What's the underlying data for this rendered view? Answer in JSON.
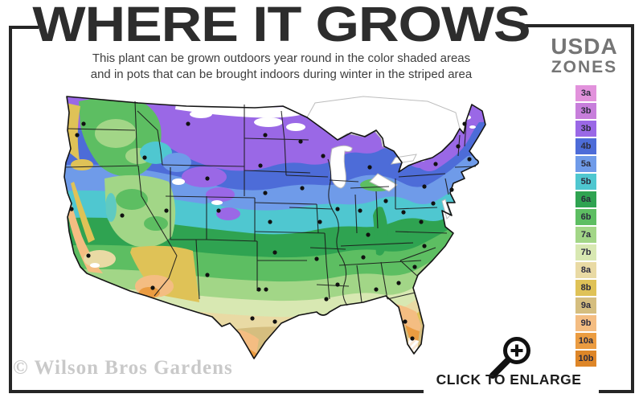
{
  "header": {
    "title": "WHERE IT GROWS",
    "subtitle_line1": "This plant can be grown outdoors year round in the color shaded areas",
    "subtitle_line2": "and in pots that can be brought indoors during winter in the striped area"
  },
  "legend": {
    "title_line1": "USDA",
    "title_line2": "ZONES",
    "zones": [
      {
        "label": "3a",
        "color": "#E292DC"
      },
      {
        "label": "3b",
        "color": "#C77EDB"
      },
      {
        "label": "3b",
        "color": "#9A68E6"
      },
      {
        "label": "4b",
        "color": "#4D6CD8"
      },
      {
        "label": "5a",
        "color": "#6F9BE9"
      },
      {
        "label": "5b",
        "color": "#4FC7D0"
      },
      {
        "label": "6a",
        "color": "#2FA351"
      },
      {
        "label": "6b",
        "color": "#5DBE62"
      },
      {
        "label": "7a",
        "color": "#A2D687"
      },
      {
        "label": "7b",
        "color": "#D8E8B2"
      },
      {
        "label": "8a",
        "color": "#E9DAA4"
      },
      {
        "label": "8b",
        "color": "#DFC257"
      },
      {
        "label": "9a",
        "color": "#D5BE7F"
      },
      {
        "label": "9b",
        "color": "#F4BD82"
      },
      {
        "label": "10a",
        "color": "#EB9C41"
      },
      {
        "label": "10b",
        "color": "#DE8628"
      }
    ]
  },
  "map": {
    "city_dots": [
      [
        32,
        44
      ],
      [
        24,
        58
      ],
      [
        108,
        86
      ],
      [
        162,
        44
      ],
      [
        186,
        112
      ],
      [
        135,
        152
      ],
      [
        17,
        150
      ],
      [
        38,
        208
      ],
      [
        80,
        158
      ],
      [
        200,
        152
      ],
      [
        118,
        248
      ],
      [
        186,
        232
      ],
      [
        258,
        58
      ],
      [
        252,
        96
      ],
      [
        258,
        130
      ],
      [
        264,
        166
      ],
      [
        270,
        204
      ],
      [
        250,
        250
      ],
      [
        259,
        250
      ],
      [
        242,
        286
      ],
      [
        270,
        290
      ],
      [
        302,
        66
      ],
      [
        330,
        84
      ],
      [
        304,
        124
      ],
      [
        326,
        166
      ],
      [
        322,
        212
      ],
      [
        334,
        262
      ],
      [
        348,
        244
      ],
      [
        348,
        150
      ],
      [
        376,
        152
      ],
      [
        388,
        98
      ],
      [
        408,
        140
      ],
      [
        386,
        182
      ],
      [
        380,
        210
      ],
      [
        396,
        250
      ],
      [
        424,
        242
      ],
      [
        432,
        290
      ],
      [
        441,
        311
      ],
      [
        444,
        222
      ],
      [
        456,
        196
      ],
      [
        452,
        166
      ],
      [
        430,
        154
      ],
      [
        456,
        122
      ],
      [
        470,
        94
      ],
      [
        506,
        44
      ],
      [
        498,
        72
      ],
      [
        512,
        88
      ],
      [
        490,
        126
      ],
      [
        467,
        143
      ]
    ]
  },
  "watermark": "© Wilson Bros Gardens",
  "cta": "CLICK TO ENLARGE",
  "colors": {
    "frame": "#262626",
    "title": "#2D2D2D",
    "subtitle": "#3D3D3D",
    "legend_title": "#757575",
    "watermark": "#C9C9C9",
    "cta": "#1C1C1C"
  }
}
